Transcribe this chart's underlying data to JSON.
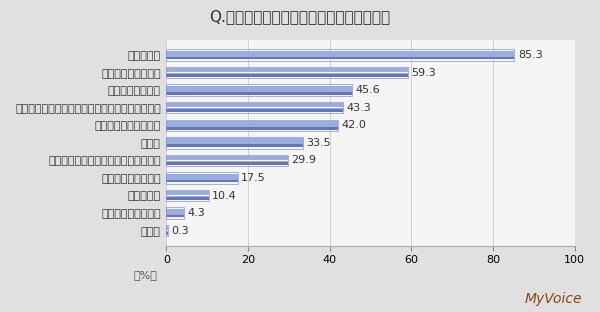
{
  "title": "Q.どのような種類の靴を持っていますか？",
  "categories": [
    "スニーカー",
    "サンダル、ミュール",
    "ビジネスシューズ",
    "ローファー、スリッポン、パンプス、ローヒール",
    "長靴、レインシューズ",
    "ブーツ",
    "スポーツシューズ（スニーカー以外）",
    "アウトドアシューズ",
    "ハイヒール",
    "その他・わからない",
    "無回答"
  ],
  "values": [
    85.3,
    59.3,
    45.6,
    43.3,
    42.0,
    33.5,
    29.9,
    17.5,
    10.4,
    4.3,
    0.3
  ],
  "bar_color_dark": "#6674bb",
  "bar_color_light": "#9aaedd",
  "bar_color_mid": "#7b8fcc",
  "background_color": "#e0e0e0",
  "plot_bg_color": "#f5f5f5",
  "xlabel": "（%）",
  "xlim": [
    0,
    100
  ],
  "xticks": [
    0,
    20,
    40,
    60,
    80,
    100
  ],
  "watermark": "MyVoice",
  "title_fontsize": 11,
  "label_fontsize": 8,
  "value_fontsize": 8,
  "watermark_fontsize": 10
}
